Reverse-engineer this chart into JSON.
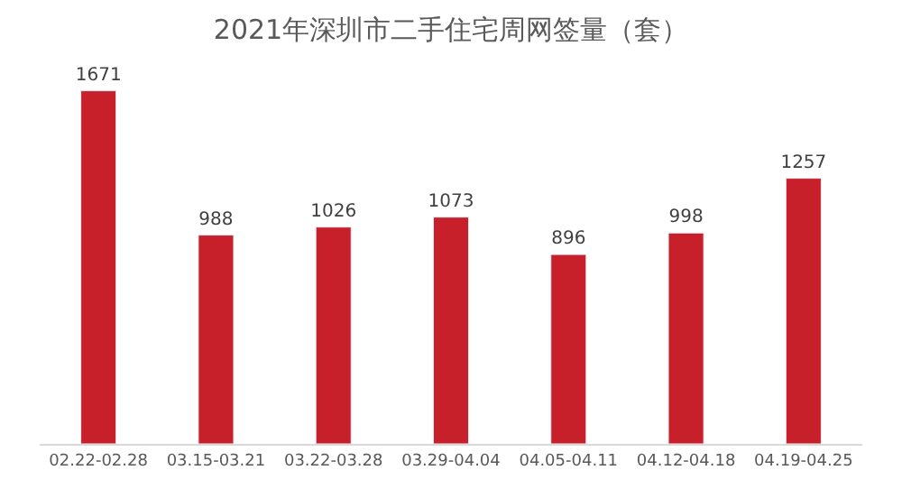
{
  "chart_data": {
    "type": "bar",
    "title": "2021年深圳市二手住宅周网签量（套）",
    "categories": [
      "02.22-02.28",
      "03.15-03.21",
      "03.22-03.28",
      "03.29-04.04",
      "04.05-04.11",
      "04.12-04.18",
      "04.19-04.25"
    ],
    "values": [
      1671,
      988,
      1026,
      1073,
      896,
      998,
      1257
    ],
    "color": "#c8202a",
    "data_labels": true,
    "tick_labels": "x"
  }
}
